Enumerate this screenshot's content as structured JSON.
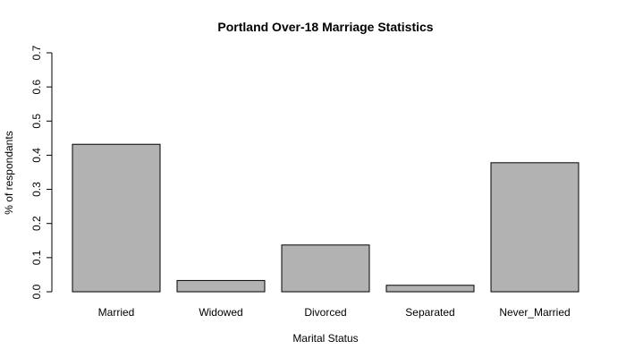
{
  "chart_data": {
    "type": "bar",
    "title": "Portland Over-18 Marriage Statistics",
    "xlabel": "Marital Status",
    "ylabel": "% of respondants",
    "categories": [
      "Married",
      "Widowed",
      "Divorced",
      "Separated",
      "Never_Married"
    ],
    "values": [
      0.432,
      0.033,
      0.137,
      0.019,
      0.378
    ],
    "ylim": [
      0,
      0.7
    ],
    "yticks": [
      "0.0",
      "0.1",
      "0.2",
      "0.3",
      "0.4",
      "0.5",
      "0.6",
      "0.7"
    ],
    "grid": false,
    "legend": "none",
    "bar_fill": "#b2b2b2",
    "bar_stroke": "#000000"
  }
}
